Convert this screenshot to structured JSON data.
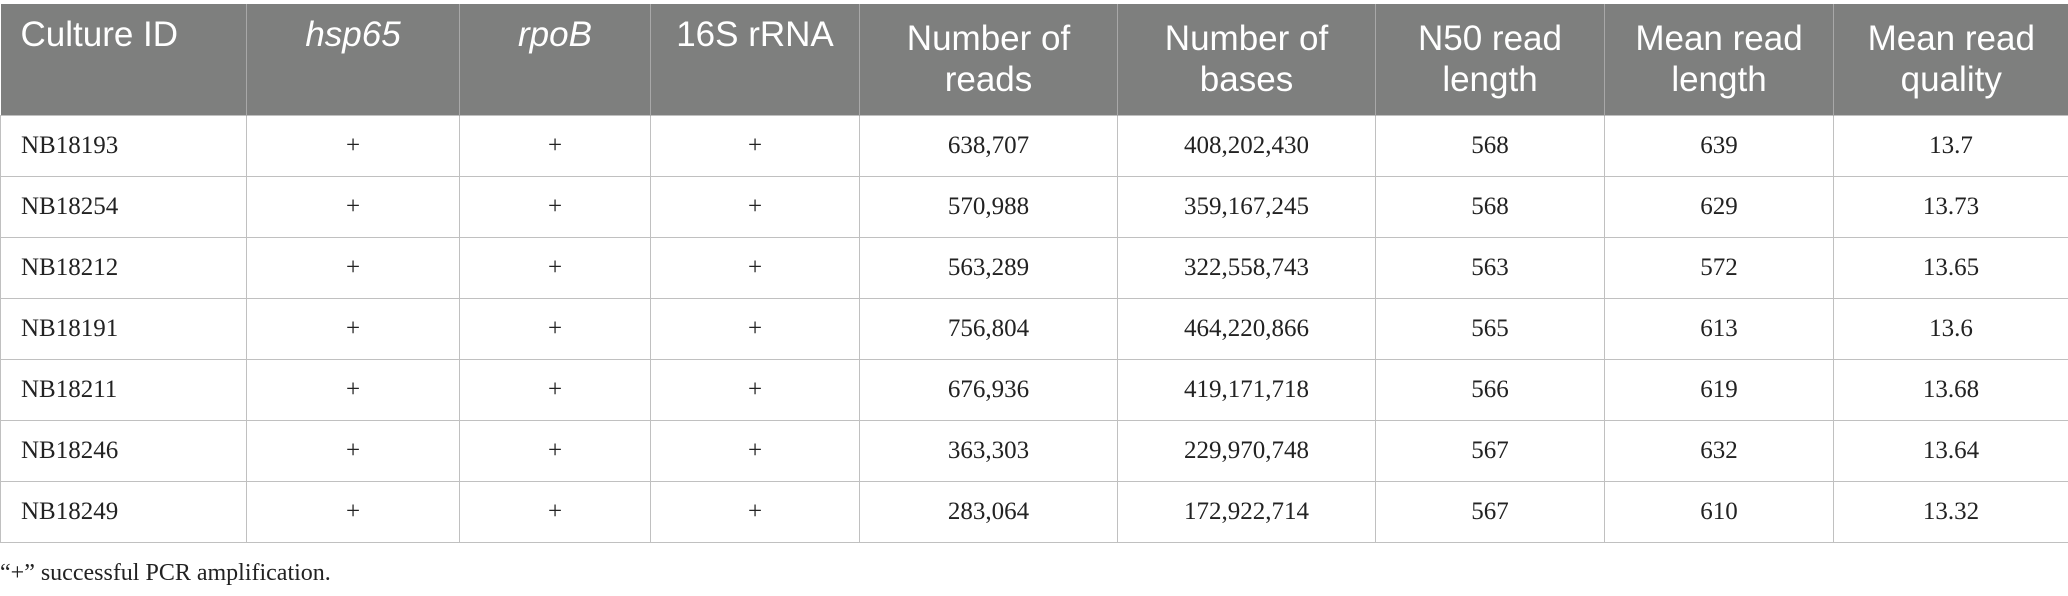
{
  "table": {
    "headers": {
      "culture_id": "Culture ID",
      "hsp65": "hsp65",
      "rpob": "rpoB",
      "rrna16s": "16S rRNA",
      "num_reads_l1": "Number of",
      "num_reads_l2": "reads",
      "num_bases_l1": "Number of",
      "num_bases_l2": "bases",
      "n50_l1": "N50 read",
      "n50_l2": "length",
      "mean_len_l1": "Mean read",
      "mean_len_l2": "length",
      "mean_qual_l1": "Mean read",
      "mean_qual_l2": "quality"
    },
    "rows": [
      {
        "id": "NB18193",
        "hsp65": "+",
        "rpob": "+",
        "rrna": "+",
        "reads": "638,707",
        "bases": "408,202,430",
        "n50": "568",
        "mean_len": "639",
        "mean_qual": "13.7"
      },
      {
        "id": "NB18254",
        "hsp65": "+",
        "rpob": "+",
        "rrna": "+",
        "reads": "570,988",
        "bases": "359,167,245",
        "n50": "568",
        "mean_len": "629",
        "mean_qual": "13.73"
      },
      {
        "id": "NB18212",
        "hsp65": "+",
        "rpob": "+",
        "rrna": "+",
        "reads": "563,289",
        "bases": "322,558,743",
        "n50": "563",
        "mean_len": "572",
        "mean_qual": "13.65"
      },
      {
        "id": "NB18191",
        "hsp65": "+",
        "rpob": "+",
        "rrna": "+",
        "reads": "756,804",
        "bases": "464,220,866",
        "n50": "565",
        "mean_len": "613",
        "mean_qual": "13.6"
      },
      {
        "id": "NB18211",
        "hsp65": "+",
        "rpob": "+",
        "rrna": "+",
        "reads": "676,936",
        "bases": "419,171,718",
        "n50": "566",
        "mean_len": "619",
        "mean_qual": "13.68"
      },
      {
        "id": "NB18246",
        "hsp65": "+",
        "rpob": "+",
        "rrna": "+",
        "reads": "363,303",
        "bases": "229,970,748",
        "n50": "567",
        "mean_len": "632",
        "mean_qual": "13.64"
      },
      {
        "id": "NB18249",
        "hsp65": "+",
        "rpob": "+",
        "rrna": "+",
        "reads": "283,064",
        "bases": "172,922,714",
        "n50": "567",
        "mean_len": "610",
        "mean_qual": "13.32"
      }
    ]
  },
  "footnote": "“+” successful PCR amplification.",
  "colors": {
    "header_bg": "#7e7f7e",
    "header_text": "#ffffff",
    "border": "#c0c0c0"
  }
}
